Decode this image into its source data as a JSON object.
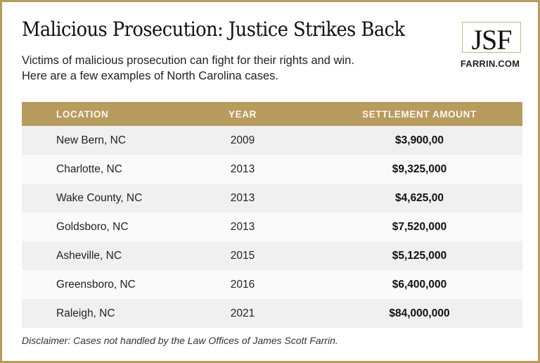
{
  "header": {
    "title": "Malicious Prosecution: Justice Strikes Back",
    "subtitle_line1": "Victims of malicious prosecution can fight for their rights and win.",
    "subtitle_line2": "Here are a few examples of North Carolina cases."
  },
  "logo": {
    "mark": "JSF",
    "site": "FARRIN.COM"
  },
  "colors": {
    "accent_gold": "#b89b5e",
    "row_shade": "#f0f0f0",
    "row_light": "#fafafa"
  },
  "table": {
    "columns": [
      "LOCATION",
      "YEAR",
      "SETTLEMENT AMOUNT"
    ],
    "rows": [
      {
        "location": "New Bern, NC",
        "year": "2009",
        "amount": "$3,900,00"
      },
      {
        "location": "Charlotte, NC",
        "year": "2013",
        "amount": "$9,325,000"
      },
      {
        "location": "Wake County, NC",
        "year": "2013",
        "amount": "$4,625,00"
      },
      {
        "location": "Goldsboro, NC",
        "year": "2013",
        "amount": "$7,520,000"
      },
      {
        "location": "Asheville, NC",
        "year": "2015",
        "amount": "$5,125,000"
      },
      {
        "location": "Greensboro, NC",
        "year": "2016",
        "amount": "$6,400,000"
      },
      {
        "location": "Raleigh, NC",
        "year": "2021",
        "amount": "$84,000,000"
      }
    ]
  },
  "footer": {
    "disclaimer": "Disclaimer: Cases not handled by the Law Offices of James Scott Farrin."
  }
}
